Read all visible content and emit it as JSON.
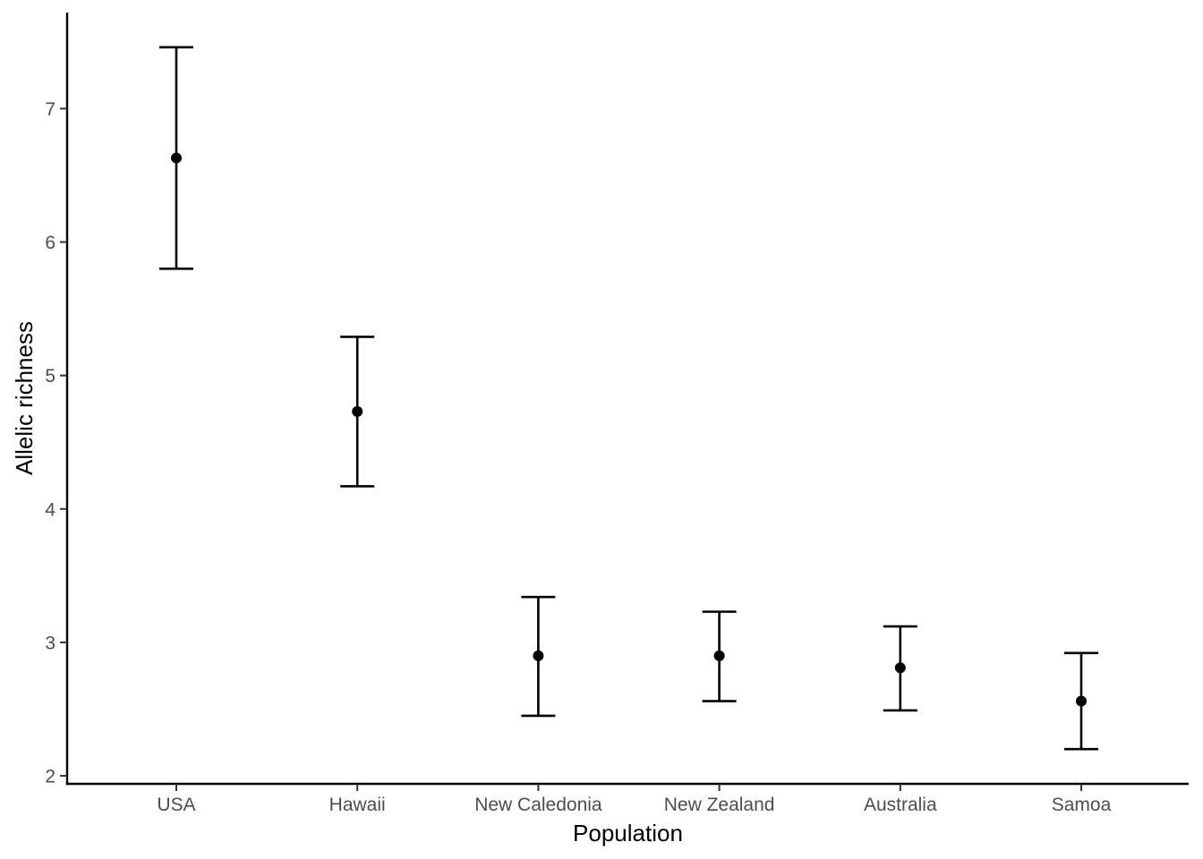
{
  "chart_data": {
    "type": "scatter",
    "title": "",
    "xlabel": "Population",
    "ylabel": "Allelic richness",
    "categories": [
      "USA",
      "Hawaii",
      "New Caledonia",
      "New Zealand",
      "Australia",
      "Samoa"
    ],
    "values": [
      6.63,
      4.73,
      2.9,
      2.9,
      2.81,
      2.56
    ],
    "lower": [
      5.8,
      4.17,
      2.45,
      2.56,
      2.49,
      2.2
    ],
    "upper": [
      7.46,
      5.29,
      3.34,
      3.23,
      3.12,
      2.92
    ],
    "ylim": [
      1.94,
      7.72
    ],
    "yticks": [
      2,
      3,
      4,
      5,
      6,
      7
    ],
    "grid": false,
    "legend": "none",
    "colors": {
      "point": "#000000",
      "errorbar": "#000000",
      "axis": "#000000",
      "tick_label": "#4d4d4d"
    }
  }
}
